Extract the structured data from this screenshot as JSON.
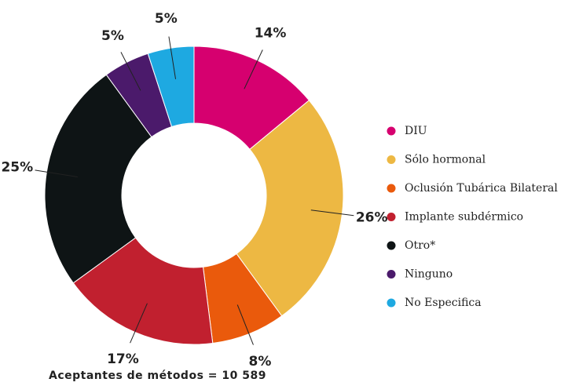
{
  "chart_data": {
    "type": "donut",
    "categories": [
      "DIU",
      "Sólo hormonal",
      "Oclusión Tubárica Bilateral",
      "Implante subdérmico",
      "Otro*",
      "Ninguno",
      "No Especifica"
    ],
    "values": [
      14,
      26,
      8,
      17,
      25,
      5,
      5
    ],
    "value_labels": [
      "14%",
      "26%",
      "8%",
      "17%",
      "25%",
      "5%",
      "5%"
    ],
    "colors": [
      "#d6006f",
      "#edb843",
      "#ea5a0c",
      "#c1202f",
      "#0e1415",
      "#4b1a6b",
      "#1ea9e1"
    ],
    "caption": "Aceptantes de métodos = 10 589",
    "legend": "right"
  }
}
